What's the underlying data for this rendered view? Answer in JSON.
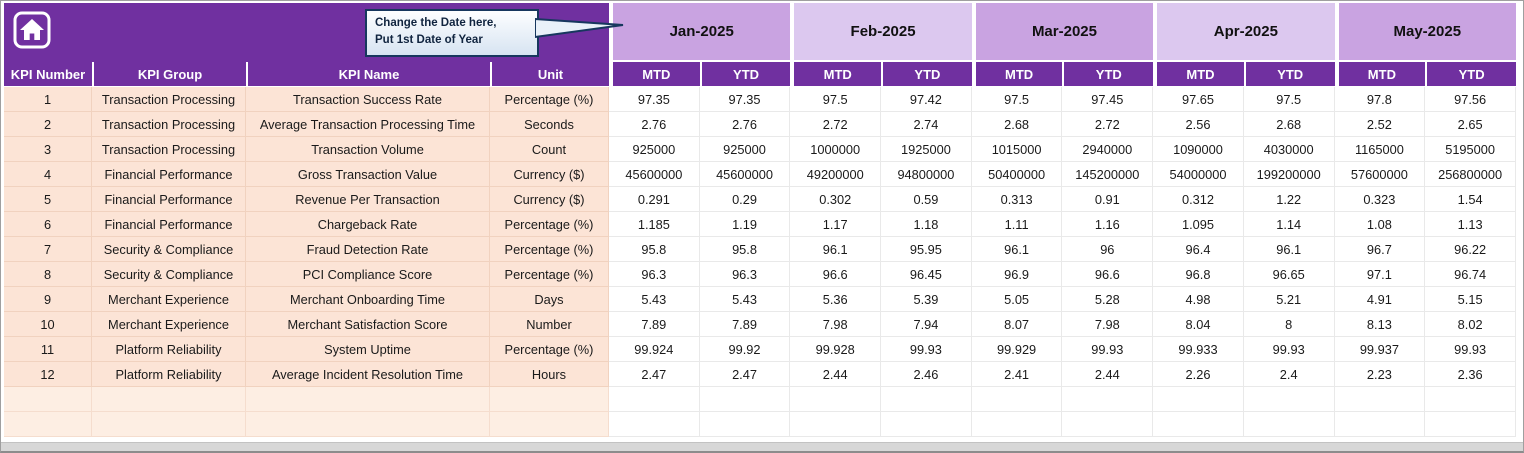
{
  "colors": {
    "header_purple": "#7030a0",
    "band_a": "#c9a3e1",
    "band_b": "#dcc8ef",
    "row_peach": "#fce4d6",
    "empty_peach": "#fdeee3",
    "callout_border": "#17375e"
  },
  "header": {
    "callout": {
      "line1": "Change the Date here,",
      "line2": "Put 1st Date of Year"
    },
    "months": [
      "Jan-2025",
      "Feb-2025",
      "Mar-2025",
      "Apr-2025",
      "May-2025"
    ],
    "sub_headers": {
      "mtd": "MTD",
      "ytd": "YTD"
    },
    "left_headers": [
      "KPI Number",
      "KPI Group",
      "KPI Name",
      "Unit"
    ]
  },
  "table": {
    "rows": [
      {
        "kpi_number": "1",
        "kpi_group": "Transaction Processing",
        "kpi_name": "Transaction Success Rate",
        "unit": "Percentage (%)",
        "values": [
          "97.35",
          "97.35",
          "97.5",
          "97.42",
          "97.5",
          "97.45",
          "97.65",
          "97.5",
          "97.8",
          "97.56"
        ]
      },
      {
        "kpi_number": "2",
        "kpi_group": "Transaction Processing",
        "kpi_name": "Average Transaction Processing Time",
        "unit": "Seconds",
        "values": [
          "2.76",
          "2.76",
          "2.72",
          "2.74",
          "2.68",
          "2.72",
          "2.56",
          "2.68",
          "2.52",
          "2.65"
        ]
      },
      {
        "kpi_number": "3",
        "kpi_group": "Transaction Processing",
        "kpi_name": "Transaction Volume",
        "unit": "Count",
        "values": [
          "925000",
          "925000",
          "1000000",
          "1925000",
          "1015000",
          "2940000",
          "1090000",
          "4030000",
          "1165000",
          "5195000"
        ]
      },
      {
        "kpi_number": "4",
        "kpi_group": "Financial Performance",
        "kpi_name": "Gross Transaction Value",
        "unit": "Currency ($)",
        "values": [
          "45600000",
          "45600000",
          "49200000",
          "94800000",
          "50400000",
          "145200000",
          "54000000",
          "199200000",
          "57600000",
          "256800000"
        ]
      },
      {
        "kpi_number": "5",
        "kpi_group": "Financial Performance",
        "kpi_name": "Revenue Per Transaction",
        "unit": "Currency ($)",
        "values": [
          "0.291",
          "0.29",
          "0.302",
          "0.59",
          "0.313",
          "0.91",
          "0.312",
          "1.22",
          "0.323",
          "1.54"
        ]
      },
      {
        "kpi_number": "6",
        "kpi_group": "Financial Performance",
        "kpi_name": "Chargeback Rate",
        "unit": "Percentage (%)",
        "values": [
          "1.185",
          "1.19",
          "1.17",
          "1.18",
          "1.11",
          "1.16",
          "1.095",
          "1.14",
          "1.08",
          "1.13"
        ]
      },
      {
        "kpi_number": "7",
        "kpi_group": "Security & Compliance",
        "kpi_name": "Fraud Detection Rate",
        "unit": "Percentage (%)",
        "values": [
          "95.8",
          "95.8",
          "96.1",
          "95.95",
          "96.1",
          "96",
          "96.4",
          "96.1",
          "96.7",
          "96.22"
        ]
      },
      {
        "kpi_number": "8",
        "kpi_group": "Security & Compliance",
        "kpi_name": "PCI Compliance Score",
        "unit": "Percentage (%)",
        "values": [
          "96.3",
          "96.3",
          "96.6",
          "96.45",
          "96.9",
          "96.6",
          "96.8",
          "96.65",
          "97.1",
          "96.74"
        ]
      },
      {
        "kpi_number": "9",
        "kpi_group": "Merchant Experience",
        "kpi_name": "Merchant Onboarding Time",
        "unit": "Days",
        "values": [
          "5.43",
          "5.43",
          "5.36",
          "5.39",
          "5.05",
          "5.28",
          "4.98",
          "5.21",
          "4.91",
          "5.15"
        ]
      },
      {
        "kpi_number": "10",
        "kpi_group": "Merchant Experience",
        "kpi_name": "Merchant Satisfaction Score",
        "unit": "Number",
        "values": [
          "7.89",
          "7.89",
          "7.98",
          "7.94",
          "8.07",
          "7.98",
          "8.04",
          "8",
          "8.13",
          "8.02"
        ]
      },
      {
        "kpi_number": "11",
        "kpi_group": "Platform Reliability",
        "kpi_name": "System Uptime",
        "unit": "Percentage (%)",
        "values": [
          "99.924",
          "99.92",
          "99.928",
          "99.93",
          "99.929",
          "99.93",
          "99.933",
          "99.93",
          "99.937",
          "99.93"
        ]
      },
      {
        "kpi_number": "12",
        "kpi_group": "Platform Reliability",
        "kpi_name": "Average Incident Resolution Time",
        "unit": "Hours",
        "values": [
          "2.47",
          "2.47",
          "2.44",
          "2.46",
          "2.41",
          "2.44",
          "2.26",
          "2.4",
          "2.23",
          "2.36"
        ]
      }
    ],
    "empty_row_count": 2
  }
}
